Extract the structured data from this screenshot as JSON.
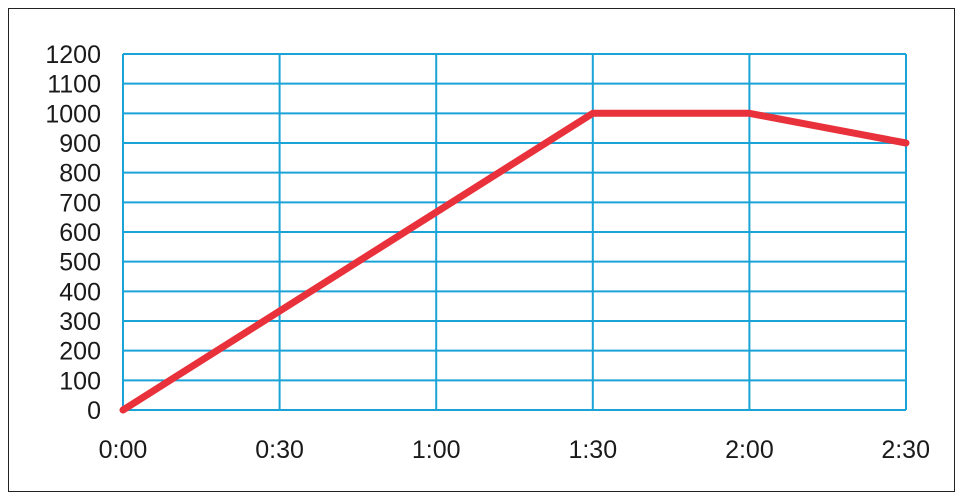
{
  "colors": {
    "grid": "#1aa3d6",
    "series": "#e8313a",
    "text": "#1a1a1a",
    "border": "#222222"
  },
  "chart_data": {
    "type": "line",
    "title": "",
    "xlabel": "",
    "ylabel": "",
    "grid": true,
    "legend": "none",
    "xlim": [
      "0:00",
      "2:30"
    ],
    "ylim": [
      0,
      1200
    ],
    "x_ticks": [
      "0:00",
      "0:30",
      "1:00",
      "1:30",
      "2:00",
      "2:30"
    ],
    "y_ticks": [
      "0",
      "100",
      "200",
      "300",
      "400",
      "500",
      "600",
      "700",
      "800",
      "900",
      "1000",
      "1100",
      "1200"
    ],
    "series": [
      {
        "x": [
          "0:00",
          "1:30",
          "2:00",
          "2:30"
        ],
        "y": [
          0,
          1000,
          1000,
          900
        ]
      }
    ]
  }
}
